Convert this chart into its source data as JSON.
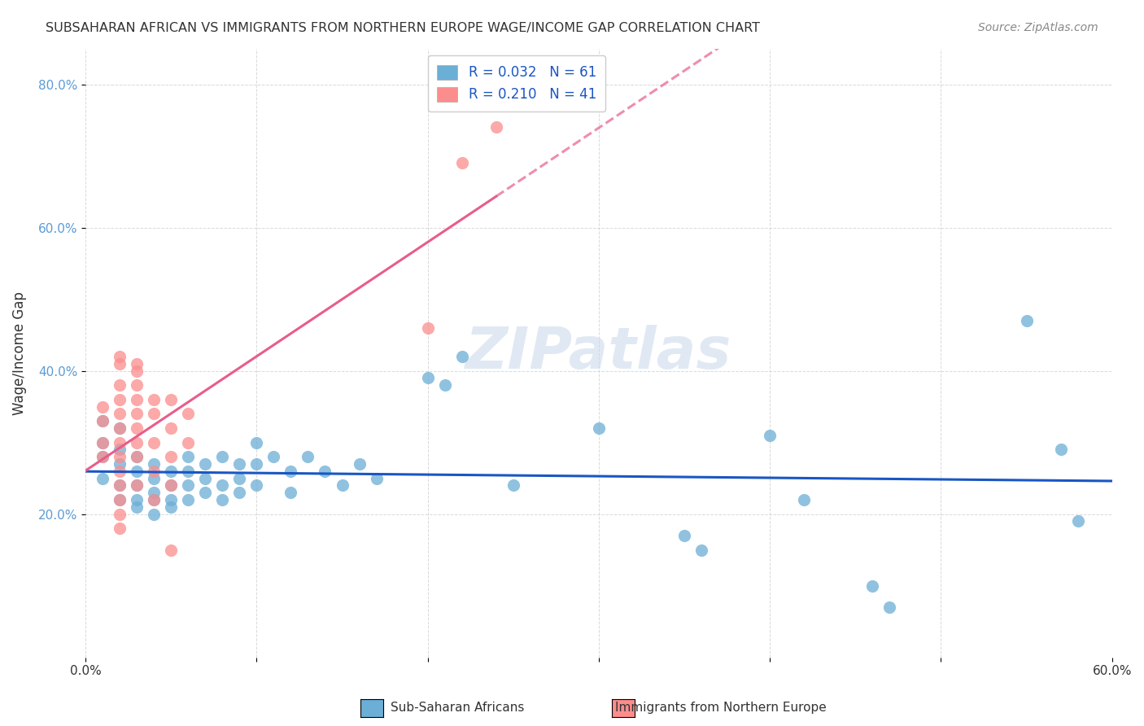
{
  "title": "SUBSAHARAN AFRICAN VS IMMIGRANTS FROM NORTHERN EUROPE WAGE/INCOME GAP CORRELATION CHART",
  "source": "Source: ZipAtlas.com",
  "xlabel_bottom": "",
  "ylabel": "Wage/Income Gap",
  "xmin": 0.0,
  "xmax": 0.6,
  "ymin": 0.0,
  "ymax": 0.85,
  "yticks": [
    0.2,
    0.4,
    0.6,
    0.8
  ],
  "xticks": [
    0.0,
    0.1,
    0.2,
    0.3,
    0.4,
    0.5,
    0.6
  ],
  "xtick_labels": [
    "0.0%",
    "",
    "",
    "",
    "",
    "",
    "60.0%"
  ],
  "ytick_labels": [
    "20.0%",
    "40.0%",
    "60.0%",
    "80.0%"
  ],
  "legend1_label": "R = 0.032   N = 61",
  "legend2_label": "R = 0.210   N = 41",
  "legend1_R": "0.032",
  "legend1_N": "61",
  "legend2_R": "0.210",
  "legend2_N": "41",
  "blue_color": "#6baed6",
  "pink_color": "#fc8d8d",
  "blue_line_color": "#1a56c4",
  "pink_line_color": "#e85d8a",
  "watermark": "ZIPatlas",
  "blue_scatter": [
    [
      0.01,
      0.33
    ],
    [
      0.01,
      0.3
    ],
    [
      0.01,
      0.28
    ],
    [
      0.01,
      0.25
    ],
    [
      0.02,
      0.32
    ],
    [
      0.02,
      0.29
    ],
    [
      0.02,
      0.27
    ],
    [
      0.02,
      0.24
    ],
    [
      0.02,
      0.22
    ],
    [
      0.03,
      0.28
    ],
    [
      0.03,
      0.26
    ],
    [
      0.03,
      0.24
    ],
    [
      0.03,
      0.22
    ],
    [
      0.03,
      0.21
    ],
    [
      0.04,
      0.27
    ],
    [
      0.04,
      0.25
    ],
    [
      0.04,
      0.23
    ],
    [
      0.04,
      0.22
    ],
    [
      0.04,
      0.2
    ],
    [
      0.05,
      0.26
    ],
    [
      0.05,
      0.24
    ],
    [
      0.05,
      0.22
    ],
    [
      0.05,
      0.21
    ],
    [
      0.06,
      0.28
    ],
    [
      0.06,
      0.26
    ],
    [
      0.06,
      0.24
    ],
    [
      0.06,
      0.22
    ],
    [
      0.07,
      0.27
    ],
    [
      0.07,
      0.25
    ],
    [
      0.07,
      0.23
    ],
    [
      0.08,
      0.28
    ],
    [
      0.08,
      0.24
    ],
    [
      0.08,
      0.22
    ],
    [
      0.09,
      0.27
    ],
    [
      0.09,
      0.25
    ],
    [
      0.09,
      0.23
    ],
    [
      0.1,
      0.3
    ],
    [
      0.1,
      0.27
    ],
    [
      0.1,
      0.24
    ],
    [
      0.11,
      0.28
    ],
    [
      0.12,
      0.26
    ],
    [
      0.12,
      0.23
    ],
    [
      0.13,
      0.28
    ],
    [
      0.14,
      0.26
    ],
    [
      0.15,
      0.24
    ],
    [
      0.16,
      0.27
    ],
    [
      0.17,
      0.25
    ],
    [
      0.2,
      0.39
    ],
    [
      0.21,
      0.38
    ],
    [
      0.22,
      0.42
    ],
    [
      0.25,
      0.24
    ],
    [
      0.3,
      0.32
    ],
    [
      0.35,
      0.17
    ],
    [
      0.36,
      0.15
    ],
    [
      0.4,
      0.31
    ],
    [
      0.42,
      0.22
    ],
    [
      0.46,
      0.1
    ],
    [
      0.47,
      0.07
    ],
    [
      0.55,
      0.47
    ],
    [
      0.57,
      0.29
    ],
    [
      0.58,
      0.19
    ]
  ],
  "pink_scatter": [
    [
      0.01,
      0.33
    ],
    [
      0.01,
      0.3
    ],
    [
      0.01,
      0.28
    ],
    [
      0.01,
      0.35
    ],
    [
      0.02,
      0.38
    ],
    [
      0.02,
      0.41
    ],
    [
      0.02,
      0.42
    ],
    [
      0.02,
      0.36
    ],
    [
      0.02,
      0.34
    ],
    [
      0.02,
      0.32
    ],
    [
      0.02,
      0.3
    ],
    [
      0.02,
      0.28
    ],
    [
      0.02,
      0.26
    ],
    [
      0.02,
      0.24
    ],
    [
      0.02,
      0.22
    ],
    [
      0.02,
      0.2
    ],
    [
      0.02,
      0.18
    ],
    [
      0.03,
      0.41
    ],
    [
      0.03,
      0.4
    ],
    [
      0.03,
      0.38
    ],
    [
      0.03,
      0.36
    ],
    [
      0.03,
      0.34
    ],
    [
      0.03,
      0.32
    ],
    [
      0.03,
      0.3
    ],
    [
      0.03,
      0.28
    ],
    [
      0.03,
      0.24
    ],
    [
      0.04,
      0.36
    ],
    [
      0.04,
      0.34
    ],
    [
      0.04,
      0.3
    ],
    [
      0.04,
      0.26
    ],
    [
      0.04,
      0.22
    ],
    [
      0.05,
      0.36
    ],
    [
      0.05,
      0.32
    ],
    [
      0.05,
      0.28
    ],
    [
      0.05,
      0.24
    ],
    [
      0.05,
      0.15
    ],
    [
      0.06,
      0.34
    ],
    [
      0.06,
      0.3
    ],
    [
      0.2,
      0.46
    ],
    [
      0.22,
      0.69
    ],
    [
      0.24,
      0.74
    ]
  ]
}
